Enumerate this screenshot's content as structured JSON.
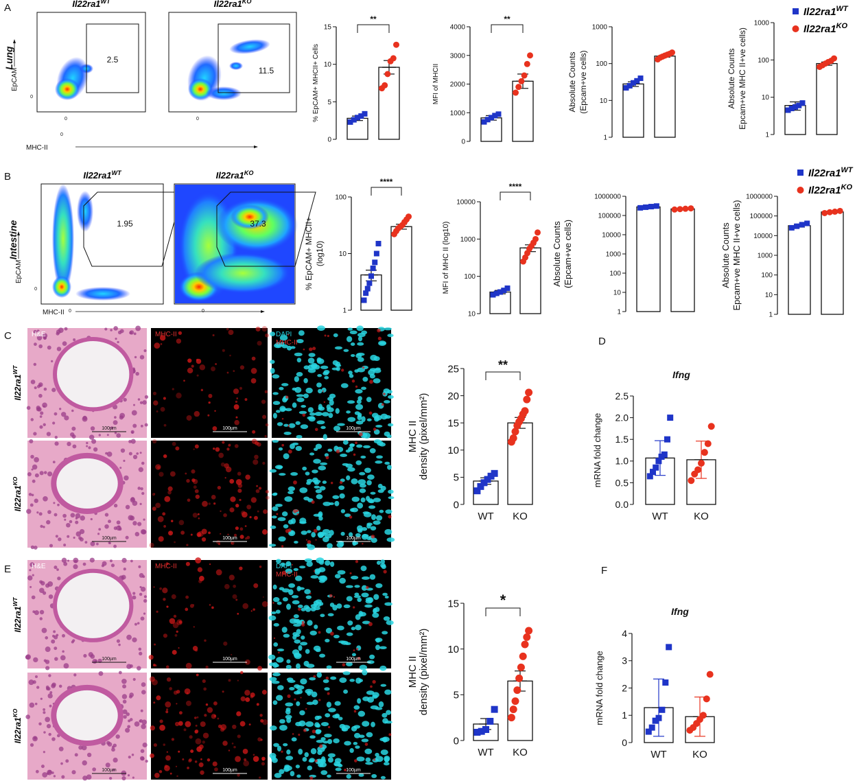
{
  "panels": {
    "A": "A",
    "B": "B",
    "C": "C",
    "D": "D",
    "E": "E",
    "F": "F"
  },
  "genotypes": {
    "wt_base": "Il22ra1",
    "wt_sup": "WT",
    "ko_base": "Il22ra1",
    "ko_sup": "KO"
  },
  "groups": {
    "wt": "WT",
    "ko": "KO"
  },
  "colors": {
    "wt": "#1f35c8",
    "ko": "#e8321e",
    "axis": "#111111"
  },
  "flow": {
    "lung": {
      "tissue": "Lung",
      "x_axis": "MHC-II",
      "y_axis": "EpCAM",
      "zero": "0",
      "wt_gate": "2.5",
      "ko_gate": "11.5"
    },
    "intestine": {
      "tissue": "Intestine",
      "x_axis": "MHC-II",
      "y_axis": "EpCAM",
      "zero": "0",
      "wt_gate": "1.95",
      "ko_gate": "37.3"
    }
  },
  "micro": {
    "he": "H&E",
    "mhc": "MHC-II",
    "dapi": "DAPI",
    "scale": "100µm"
  },
  "chart_data": [
    {
      "id": "A1",
      "type": "bar",
      "scale": "linear",
      "ylim": [
        0,
        15
      ],
      "ticks": [
        "0",
        "5",
        "10",
        "15"
      ],
      "ylabel": "% EpCAM+ MHCII+ Cells",
      "sig": "**",
      "wt": {
        "mean": 2.8,
        "err": 0.3,
        "points": [
          2.3,
          2.6,
          2.9,
          3.1,
          3.4
        ]
      },
      "ko": {
        "mean": 9.6,
        "err": 0.9,
        "points": [
          6.8,
          7.2,
          8.7,
          10.4,
          10.8,
          12.6
        ]
      }
    },
    {
      "id": "A2",
      "type": "bar",
      "scale": "linear",
      "ylim": [
        0,
        4000
      ],
      "ticks": [
        "0",
        "1000",
        "2000",
        "3000",
        "4000"
      ],
      "ylabel": "MFI of MHCII",
      "sig": "**",
      "wt": {
        "mean": 820,
        "err": 80,
        "points": [
          680,
          760,
          830,
          900,
          950
        ]
      },
      "ko": {
        "mean": 2100,
        "err": 250,
        "points": [
          1700,
          1900,
          2100,
          2300,
          2700,
          3000
        ]
      }
    },
    {
      "id": "A3",
      "type": "bar",
      "scale": "log",
      "ylim": [
        1,
        1000
      ],
      "ticks": [
        "1",
        "10",
        "100",
        "1000"
      ],
      "ylabel": "Absolute Counts",
      "ylabel2": "(Epcam+ve cells)",
      "sig": "",
      "wt": {
        "mean": 28,
        "err": 4,
        "points": [
          22,
          25,
          30,
          34,
          40
        ]
      },
      "ko": {
        "mean": 160,
        "err": 10,
        "points": [
          130,
          145,
          155,
          165,
          175,
          185,
          200
        ]
      }
    },
    {
      "id": "A4",
      "type": "bar",
      "scale": "log",
      "ylim": [
        1,
        1000
      ],
      "ticks": [
        "1",
        "10",
        "100",
        "1000"
      ],
      "ylabel": "Absolute Counts",
      "ylabel2": "Epcam+ve MHC II+ve cells)",
      "sig": "",
      "wt": {
        "mean": 6,
        "err": 1.5,
        "points": [
          4.5,
          5,
          5.5,
          6,
          7
        ]
      },
      "ko": {
        "mean": 80,
        "err": 8,
        "points": [
          65,
          72,
          80,
          88,
          95,
          110
        ]
      }
    },
    {
      "id": "B1",
      "type": "bar",
      "scale": "log",
      "ylim": [
        1,
        100
      ],
      "ticks": [
        "1",
        "10",
        "100"
      ],
      "ylabel": "% EpCAM+ MHCII+",
      "ylabel2": "(log10)",
      "sig": "****",
      "wt": {
        "mean": 4.2,
        "err": 0.9,
        "points": [
          1.5,
          2,
          2.4,
          3,
          4,
          5.5,
          7,
          10,
          15
        ]
      },
      "ko": {
        "mean": 30,
        "err": 3,
        "points": [
          22,
          25,
          28,
          30,
          32,
          36,
          40,
          45
        ]
      }
    },
    {
      "id": "B2",
      "type": "bar",
      "scale": "log",
      "ylim": [
        10,
        10000
      ],
      "ticks": [
        "10",
        "100",
        "1000",
        "10000"
      ],
      "ylabel": "MFI of MHC II (log10)",
      "sig": "****",
      "wt": {
        "mean": 38,
        "err": 4,
        "points": [
          32,
          35,
          38,
          42,
          48
        ]
      },
      "ko": {
        "mean": 580,
        "err": 120,
        "points": [
          250,
          320,
          420,
          550,
          650,
          800,
          1000,
          1500
        ]
      }
    },
    {
      "id": "B3",
      "type": "bar",
      "scale": "log",
      "ylim": [
        1,
        1000000
      ],
      "ticks": [
        "1",
        "10",
        "100",
        "1000",
        "10000",
        "100000",
        "1000000"
      ],
      "ylabel": "Absolute Counts",
      "ylabel2": "(Epcam+ve cells)",
      "sig": "",
      "wt": {
        "mean": 280000,
        "err": 25000,
        "points": [
          250000,
          270000,
          290000,
          310000
        ]
      },
      "ko": {
        "mean": 220000,
        "err": 15000,
        "points": [
          205000,
          215000,
          225000,
          235000
        ]
      }
    },
    {
      "id": "B4",
      "type": "bar",
      "scale": "log",
      "ylim": [
        1,
        1000000
      ],
      "ticks": [
        "1",
        "10",
        "100",
        "1000",
        "10000",
        "100000",
        "1000000"
      ],
      "ylabel": "Absolute Counts",
      "ylabel2": "Epcam+ve MHC II+ve cells)",
      "sig": "",
      "wt": {
        "mean": 32000,
        "err": 5000,
        "points": [
          25000,
          30000,
          36000,
          42000
        ]
      },
      "ko": {
        "mean": 160000,
        "err": 15000,
        "points": [
          140000,
          155000,
          165000,
          180000
        ]
      }
    },
    {
      "id": "C1",
      "type": "bar",
      "scale": "linear",
      "ylim": [
        0,
        25
      ],
      "ticks": [
        "0",
        "5",
        "10",
        "15",
        "20",
        "25"
      ],
      "ylabel": "MHC II",
      "ylabel2": "density (pixel/mm²)",
      "sig": "**",
      "xlabels": true,
      "wt": {
        "mean": 4.3,
        "err": 0.6,
        "points": [
          2.5,
          3.3,
          4,
          4.6,
          5.2,
          5.7
        ]
      },
      "ko": {
        "mean": 15,
        "err": 1,
        "points": [
          11.5,
          12.2,
          13.4,
          14.5,
          15.2,
          15.8,
          16.6,
          17.2,
          19.3,
          20.6
        ]
      }
    },
    {
      "id": "D1",
      "type": "bar",
      "scale": "linear",
      "ylim": [
        0,
        2.5
      ],
      "ticks": [
        "0.0",
        "0.5",
        "1.0",
        "1.5",
        "2.0",
        "2.5"
      ],
      "ylabel": "mRNA fold change",
      "sig": "",
      "title": "Ifng",
      "xlabels": true,
      "sd": true,
      "wt": {
        "mean": 1.07,
        "err": 0.4,
        "points": [
          0.65,
          0.75,
          0.85,
          1.0,
          1.1,
          1.15,
          1.5,
          2.0
        ]
      },
      "ko": {
        "mean": 1.03,
        "err": 0.43,
        "points": [
          0.55,
          0.7,
          0.8,
          0.95,
          1.2,
          1.4,
          1.8
        ]
      }
    },
    {
      "id": "E1",
      "type": "bar",
      "scale": "linear",
      "ylim": [
        0,
        15
      ],
      "ticks": [
        "0",
        "5",
        "10",
        "15"
      ],
      "ylabel": "MHC II",
      "ylabel2": "density (pixel/mm²)",
      "sig": "*",
      "xlabels": true,
      "wt": {
        "mean": 1.8,
        "err": 0.6,
        "points": [
          0.9,
          1.0,
          1.2,
          2.1,
          3.4
        ]
      },
      "ko": {
        "mean": 6.5,
        "err": 1.1,
        "points": [
          2.5,
          3.4,
          4.3,
          5.5,
          6.8,
          8.0,
          9.2,
          10.5,
          11.3,
          12.0
        ]
      }
    },
    {
      "id": "F1",
      "type": "bar",
      "scale": "linear",
      "ylim": [
        0,
        4
      ],
      "ticks": [
        "0",
        "1",
        "2",
        "3",
        "4"
      ],
      "ylabel": "mRNA fold change",
      "sig": "",
      "title": "Ifng",
      "xlabels": true,
      "sd": true,
      "wt": {
        "mean": 1.28,
        "err": 1.05,
        "points": [
          0.4,
          0.55,
          0.8,
          0.9,
          1.2,
          2.2,
          3.5
        ]
      },
      "ko": {
        "mean": 0.95,
        "err": 0.72,
        "points": [
          0.45,
          0.55,
          0.7,
          0.85,
          1.0,
          1.6,
          2.5
        ]
      }
    }
  ]
}
